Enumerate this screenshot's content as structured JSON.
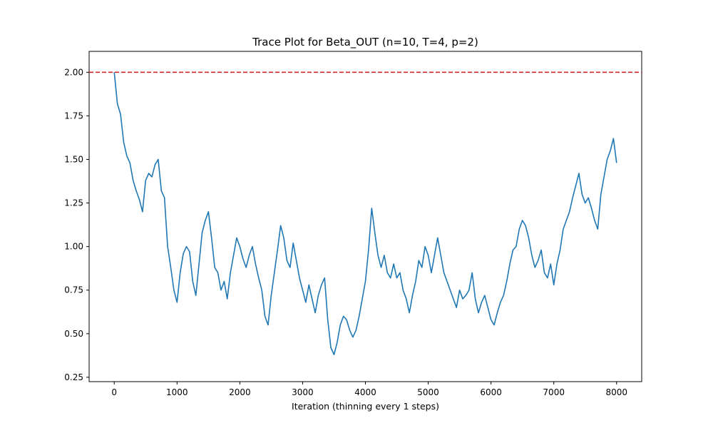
{
  "chart_data": {
    "type": "line",
    "title": "Trace Plot for Beta_OUT (n=10, T=4, p=2)",
    "xlabel": "Iteration (thinning every 1 steps)",
    "ylabel": "",
    "xlim": [
      -400,
      8400
    ],
    "ylim": [
      0.225,
      2.12
    ],
    "x_ticks": [
      0,
      1000,
      2000,
      3000,
      4000,
      5000,
      6000,
      7000,
      8000
    ],
    "x_tick_labels": [
      "0",
      "1000",
      "2000",
      "3000",
      "4000",
      "5000",
      "6000",
      "7000",
      "8000"
    ],
    "y_ticks": [
      0.25,
      0.5,
      0.75,
      1.0,
      1.25,
      1.5,
      1.75,
      2.0
    ],
    "y_tick_labels": [
      "0.25",
      "0.50",
      "0.75",
      "1.00",
      "1.25",
      "1.50",
      "1.75",
      "2.00"
    ],
    "grid": false,
    "reference_line": {
      "y": 2.0,
      "style": "dashed",
      "color": "#d62728"
    },
    "series": [
      {
        "color": "#1f77b4",
        "x": [
          0,
          50,
          100,
          150,
          200,
          250,
          300,
          350,
          400,
          450,
          500,
          550,
          600,
          650,
          700,
          750,
          800,
          850,
          900,
          950,
          1000,
          1050,
          1100,
          1150,
          1200,
          1250,
          1300,
          1350,
          1400,
          1450,
          1500,
          1550,
          1600,
          1650,
          1700,
          1750,
          1800,
          1850,
          1900,
          1950,
          2000,
          2050,
          2100,
          2150,
          2200,
          2250,
          2300,
          2350,
          2400,
          2450,
          2500,
          2550,
          2600,
          2650,
          2700,
          2750,
          2800,
          2850,
          2900,
          2950,
          3000,
          3050,
          3100,
          3150,
          3200,
          3250,
          3300,
          3350,
          3400,
          3450,
          3500,
          3550,
          3600,
          3650,
          3700,
          3750,
          3800,
          3850,
          3900,
          3950,
          4000,
          4050,
          4100,
          4150,
          4200,
          4250,
          4300,
          4350,
          4400,
          4450,
          4500,
          4550,
          4600,
          4650,
          4700,
          4750,
          4800,
          4850,
          4900,
          4950,
          5000,
          5050,
          5100,
          5150,
          5200,
          5250,
          5300,
          5350,
          5400,
          5450,
          5500,
          5550,
          5600,
          5650,
          5700,
          5750,
          5800,
          5850,
          5900,
          5950,
          6000,
          6050,
          6100,
          6150,
          6200,
          6250,
          6300,
          6350,
          6400,
          6450,
          6500,
          6550,
          6600,
          6650,
          6700,
          6750,
          6800,
          6850,
          6900,
          6950,
          7000,
          7050,
          7100,
          7150,
          7200,
          7250,
          7300,
          7350,
          7400,
          7450,
          7500,
          7550,
          7600,
          7650,
          7700,
          7750,
          7800,
          7850,
          7900,
          7950,
          8000
        ],
        "y": [
          2.0,
          1.82,
          1.76,
          1.6,
          1.52,
          1.48,
          1.38,
          1.32,
          1.27,
          1.2,
          1.38,
          1.42,
          1.4,
          1.47,
          1.5,
          1.32,
          1.28,
          1.0,
          0.88,
          0.75,
          0.68,
          0.85,
          0.96,
          1.0,
          0.97,
          0.8,
          0.72,
          0.9,
          1.08,
          1.15,
          1.2,
          1.05,
          0.88,
          0.85,
          0.75,
          0.8,
          0.7,
          0.85,
          0.95,
          1.05,
          1.0,
          0.93,
          0.88,
          0.95,
          1.0,
          0.9,
          0.82,
          0.75,
          0.6,
          0.55,
          0.72,
          0.85,
          0.98,
          1.12,
          1.05,
          0.92,
          0.88,
          1.02,
          0.92,
          0.82,
          0.75,
          0.68,
          0.78,
          0.7,
          0.62,
          0.72,
          0.78,
          0.82,
          0.58,
          0.42,
          0.38,
          0.45,
          0.55,
          0.6,
          0.58,
          0.52,
          0.48,
          0.52,
          0.6,
          0.7,
          0.8,
          0.98,
          1.22,
          1.08,
          0.95,
          0.88,
          0.95,
          0.85,
          0.82,
          0.9,
          0.82,
          0.85,
          0.75,
          0.7,
          0.62,
          0.72,
          0.8,
          0.92,
          0.88,
          1.0,
          0.95,
          0.85,
          0.95,
          1.05,
          0.95,
          0.85,
          0.8,
          0.75,
          0.7,
          0.65,
          0.75,
          0.7,
          0.72,
          0.75,
          0.85,
          0.7,
          0.62,
          0.68,
          0.72,
          0.65,
          0.58,
          0.55,
          0.62,
          0.68,
          0.72,
          0.8,
          0.9,
          0.98,
          1.0,
          1.1,
          1.15,
          1.12,
          1.05,
          0.95,
          0.88,
          0.92,
          0.98,
          0.85,
          0.82,
          0.9,
          0.78,
          0.9,
          0.98,
          1.1,
          1.15,
          1.2,
          1.28,
          1.35,
          1.42,
          1.3,
          1.25,
          1.28,
          1.22,
          1.15,
          1.1,
          1.3,
          1.4,
          1.5,
          1.55,
          1.62,
          1.48
        ]
      }
    ]
  }
}
